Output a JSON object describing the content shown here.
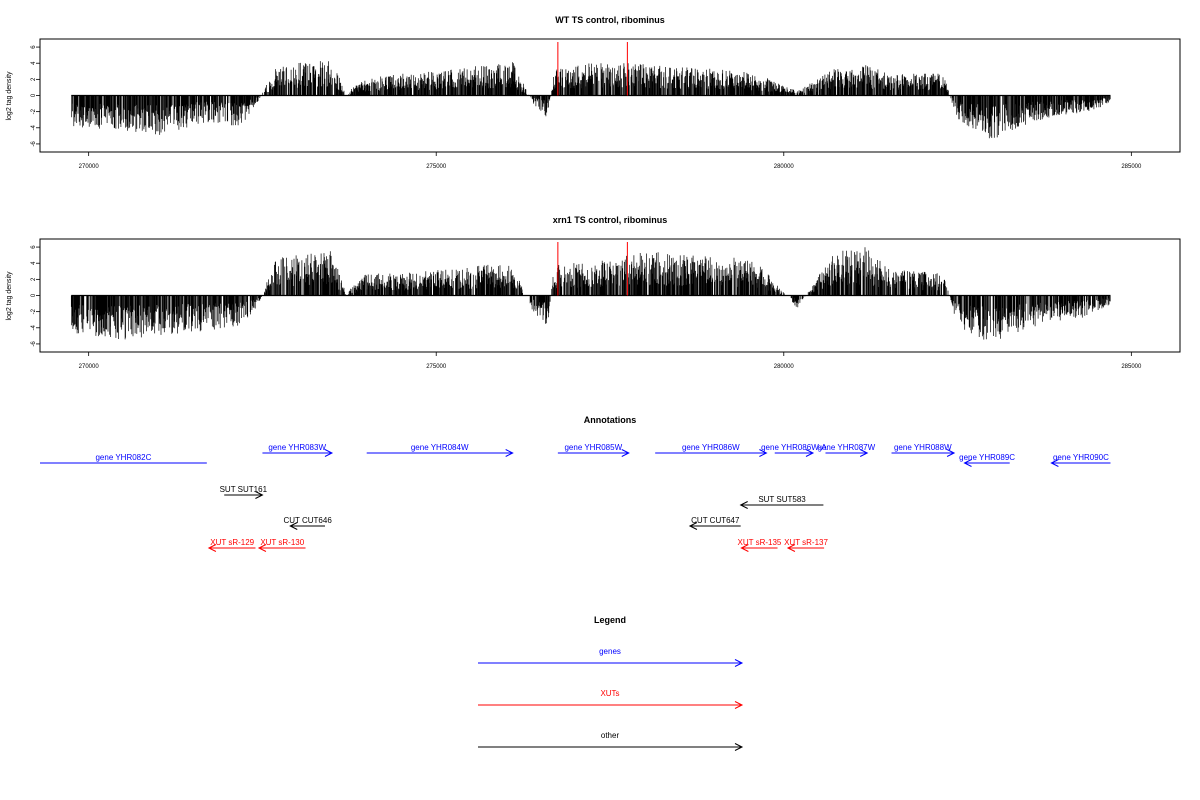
{
  "chart_data": [
    {
      "type": "bar",
      "title": "WT TS control, ribominus",
      "ylabel": "log2 tag density",
      "xlim": [
        269300,
        285700
      ],
      "ylim": [
        -7,
        7
      ],
      "x_ticks": [
        270000,
        275000,
        280000,
        285000
      ],
      "y_ticks": [
        6,
        4,
        2,
        0,
        -2,
        -4,
        -6
      ],
      "highlight_x": [
        276750,
        277750
      ],
      "colors": {
        "bars": "#000000",
        "highlight": "#ff0000"
      },
      "profile": [
        [
          269750,
          -3.5
        ],
        [
          270500,
          -4
        ],
        [
          271000,
          -4.5
        ],
        [
          271700,
          -3
        ],
        [
          272200,
          -3.5
        ],
        [
          272450,
          -0.5
        ],
        [
          272700,
          3.5
        ],
        [
          273500,
          4
        ],
        [
          273700,
          0.3
        ],
        [
          274000,
          2
        ],
        [
          274500,
          2.5
        ],
        [
          275200,
          3
        ],
        [
          275800,
          3.5
        ],
        [
          276100,
          3.8
        ],
        [
          276400,
          -1
        ],
        [
          276600,
          -2.5
        ],
        [
          276700,
          3
        ],
        [
          277500,
          4
        ],
        [
          278000,
          3.5
        ],
        [
          279000,
          3
        ],
        [
          279600,
          2.5
        ],
        [
          280200,
          0.5
        ],
        [
          280700,
          3
        ],
        [
          281200,
          3.5
        ],
        [
          281500,
          2.5
        ],
        [
          282300,
          2.5
        ],
        [
          282500,
          -3
        ],
        [
          283000,
          -5
        ],
        [
          283400,
          -3.5
        ],
        [
          283800,
          -2.5
        ],
        [
          284300,
          -2
        ],
        [
          284700,
          -1
        ]
      ]
    },
    {
      "type": "bar",
      "title": "xrn1 TS control, ribominus",
      "ylabel": "log2 tag density",
      "xlim": [
        269300,
        285700
      ],
      "ylim": [
        -7,
        7
      ],
      "x_ticks": [
        270000,
        275000,
        280000,
        285000
      ],
      "y_ticks": [
        6,
        4,
        2,
        0,
        -2,
        -4,
        -6
      ],
      "highlight_x": [
        276750,
        277750
      ],
      "colors": {
        "bars": "#000000",
        "highlight": "#ff0000"
      },
      "profile": [
        [
          269750,
          -4.5
        ],
        [
          270500,
          -5
        ],
        [
          271000,
          -4.5
        ],
        [
          271700,
          -4
        ],
        [
          272200,
          -3.5
        ],
        [
          272450,
          -1
        ],
        [
          272700,
          4.5
        ],
        [
          273500,
          5
        ],
        [
          273700,
          0.3
        ],
        [
          274000,
          2.5
        ],
        [
          274500,
          2.5
        ],
        [
          275200,
          3
        ],
        [
          275800,
          3.5
        ],
        [
          276100,
          3.5
        ],
        [
          276400,
          -2
        ],
        [
          276600,
          -3.5
        ],
        [
          276700,
          3.5
        ],
        [
          277500,
          4
        ],
        [
          278000,
          5
        ],
        [
          279000,
          4.5
        ],
        [
          279600,
          4
        ],
        [
          280200,
          -1.5
        ],
        [
          280700,
          5
        ],
        [
          281200,
          5.5
        ],
        [
          281500,
          3
        ],
        [
          282300,
          2.5
        ],
        [
          282500,
          -3.5
        ],
        [
          283000,
          -5.5
        ],
        [
          283400,
          -4
        ],
        [
          283800,
          -3
        ],
        [
          284300,
          -2.5
        ],
        [
          284700,
          -1
        ]
      ]
    }
  ],
  "annotations": {
    "title": "Annotations",
    "xlim": [
      269300,
      285700
    ],
    "features": [
      {
        "label": "gene YHR082C",
        "start": 269300,
        "end": 271700,
        "strand": "-",
        "row": 1,
        "color": "#0000ff",
        "arrow": false
      },
      {
        "label": "gene YHR083W",
        "start": 272500,
        "end": 273500,
        "strand": "+",
        "row": 0,
        "color": "#0000ff",
        "arrow": true
      },
      {
        "label": "gene YHR084W",
        "start": 274000,
        "end": 276100,
        "strand": "+",
        "row": 0,
        "color": "#0000ff",
        "arrow": true
      },
      {
        "label": "gene YHR085W",
        "start": 276750,
        "end": 277770,
        "strand": "+",
        "row": 0,
        "color": "#0000ff",
        "arrow": true
      },
      {
        "label": "gene YHR086W",
        "start": 278150,
        "end": 279750,
        "strand": "+",
        "row": 0,
        "color": "#0000ff",
        "arrow": true
      },
      {
        "label": "gene YHR086W-A",
        "start": 279870,
        "end": 280420,
        "strand": "+",
        "row": 0,
        "color": "#0000ff",
        "arrow": true
      },
      {
        "label": "gene YHR087W",
        "start": 280600,
        "end": 281200,
        "strand": "+",
        "row": 0,
        "color": "#0000ff",
        "arrow": true
      },
      {
        "label": "gene YHR088W",
        "start": 281550,
        "end": 282450,
        "strand": "+",
        "row": 0,
        "color": "#0000ff",
        "arrow": true
      },
      {
        "label": "gene YHR089C",
        "start": 282600,
        "end": 283250,
        "strand": "-",
        "row": 1,
        "color": "#0000ff",
        "arrow": true
      },
      {
        "label": "gene YHR090C",
        "start": 283850,
        "end": 284700,
        "strand": "-",
        "row": 1,
        "color": "#0000ff",
        "arrow": true
      },
      {
        "label": "SUT SUT161",
        "start": 271950,
        "end": 272500,
        "strand": "+",
        "row": 2,
        "color": "#000000",
        "arrow": true
      },
      {
        "label": "SUT SUT583",
        "start": 279380,
        "end": 280570,
        "strand": "-",
        "row": 3,
        "color": "#000000",
        "arrow": true
      },
      {
        "label": "CUT CUT646",
        "start": 272900,
        "end": 273400,
        "strand": "-",
        "row": 4,
        "color": "#000000",
        "arrow": true
      },
      {
        "label": "CUT CUT647",
        "start": 278650,
        "end": 279380,
        "strand": "-",
        "row": 4,
        "color": "#000000",
        "arrow": true
      },
      {
        "label": "XUT sR-129",
        "start": 271730,
        "end": 272400,
        "strand": "-",
        "row": 5,
        "color": "#ff0000",
        "arrow": true
      },
      {
        "label": "XUT sR-130",
        "start": 272450,
        "end": 273120,
        "strand": "-",
        "row": 5,
        "color": "#ff0000",
        "arrow": true
      },
      {
        "label": "XUT sR-135",
        "start": 279390,
        "end": 279910,
        "strand": "-",
        "row": 5,
        "color": "#ff0000",
        "arrow": true
      },
      {
        "label": "XUT sR-137",
        "start": 280060,
        "end": 280580,
        "strand": "-",
        "row": 5,
        "color": "#ff0000",
        "arrow": true
      }
    ]
  },
  "legend": {
    "title": "Legend",
    "items": [
      {
        "label": "genes",
        "color": "#0000ff"
      },
      {
        "label": "XUTs",
        "color": "#ff0000"
      },
      {
        "label": "other",
        "color": "#000000"
      }
    ]
  }
}
